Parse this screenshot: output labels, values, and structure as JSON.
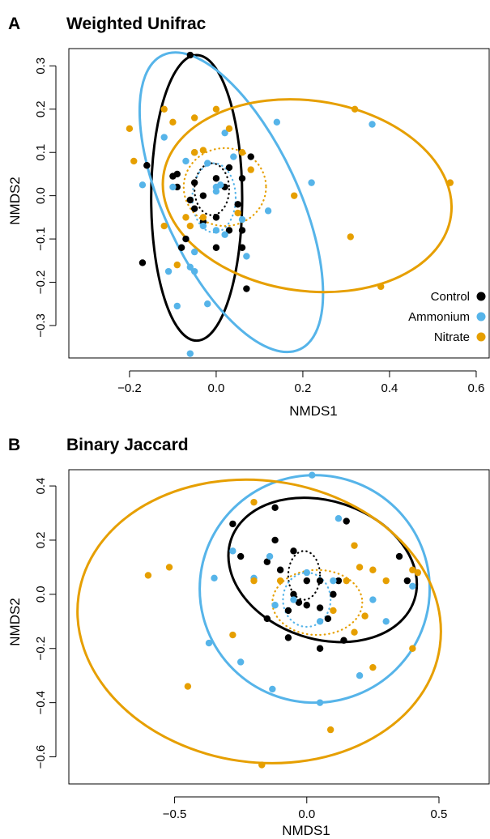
{
  "chart_data": [
    {
      "type": "scatter",
      "panel_label": "A",
      "title": "Weighted Unifrac",
      "xlabel": "NMDS1",
      "ylabel": "NMDS2",
      "xlim": [
        -0.34,
        0.63
      ],
      "ylim": [
        -0.375,
        0.34
      ],
      "xticks": [
        -0.2,
        0.0,
        0.2,
        0.4,
        0.6
      ],
      "xtick_labels": [
        "−0.2",
        "0.0",
        "0.2",
        "0.4",
        "0.6"
      ],
      "yticks": [
        -0.3,
        -0.2,
        -0.1,
        0.0,
        0.1,
        0.2,
        0.3
      ],
      "ytick_labels": [
        "−0.3",
        "−0.2",
        "−0.1",
        "0.0",
        "0.1",
        "0.2",
        "0.3"
      ],
      "grid": false,
      "legend": {
        "position": "bottom-right",
        "entries": [
          "Control",
          "Ammonium",
          "Nitrate"
        ]
      },
      "series": [
        {
          "name": "Control",
          "color": "#000000",
          "points": [
            [
              -0.06,
              0.325
            ],
            [
              -0.16,
              0.07
            ],
            [
              -0.09,
              0.05
            ],
            [
              -0.1,
              0.045
            ],
            [
              -0.09,
              0.02
            ],
            [
              -0.05,
              0.03
            ],
            [
              -0.06,
              -0.01
            ],
            [
              -0.03,
              0.0
            ],
            [
              0.0,
              0.04
            ],
            [
              0.03,
              0.065
            ],
            [
              0.08,
              0.09
            ],
            [
              0.06,
              0.04
            ],
            [
              0.02,
              0.02
            ],
            [
              0.05,
              -0.02
            ],
            [
              -0.05,
              -0.03
            ],
            [
              -0.03,
              -0.06
            ],
            [
              0.0,
              -0.05
            ],
            [
              0.03,
              -0.08
            ],
            [
              0.06,
              -0.08
            ],
            [
              -0.07,
              -0.1
            ],
            [
              0.06,
              -0.12
            ],
            [
              -0.08,
              -0.12
            ],
            [
              0.0,
              -0.12
            ],
            [
              -0.17,
              -0.155
            ],
            [
              0.07,
              -0.215
            ]
          ]
        },
        {
          "name": "Ammonium",
          "color": "#56B4E9",
          "points": [
            [
              0.14,
              0.17
            ],
            [
              0.36,
              0.165
            ],
            [
              -0.12,
              0.135
            ],
            [
              0.02,
              0.145
            ],
            [
              -0.05,
              0.1
            ],
            [
              -0.07,
              0.08
            ],
            [
              -0.02,
              0.075
            ],
            [
              0.04,
              0.09
            ],
            [
              -0.17,
              0.025
            ],
            [
              -0.1,
              0.02
            ],
            [
              0.0,
              0.02
            ],
            [
              0.01,
              0.025
            ],
            [
              0.22,
              0.03
            ],
            [
              0.0,
              0.01
            ],
            [
              0.12,
              -0.035
            ],
            [
              0.06,
              -0.055
            ],
            [
              -0.03,
              -0.07
            ],
            [
              0.0,
              -0.08
            ],
            [
              0.02,
              -0.09
            ],
            [
              0.07,
              -0.14
            ],
            [
              -0.05,
              -0.13
            ],
            [
              -0.11,
              -0.175
            ],
            [
              -0.06,
              -0.165
            ],
            [
              -0.05,
              -0.175
            ],
            [
              -0.09,
              -0.255
            ],
            [
              -0.02,
              -0.25
            ],
            [
              -0.06,
              -0.365
            ]
          ]
        },
        {
          "name": "Nitrate",
          "color": "#E69F00",
          "points": [
            [
              -0.12,
              0.2
            ],
            [
              -0.05,
              0.18
            ],
            [
              0.0,
              0.2
            ],
            [
              0.32,
              0.2
            ],
            [
              -0.2,
              0.155
            ],
            [
              -0.1,
              0.17
            ],
            [
              0.03,
              0.155
            ],
            [
              -0.05,
              0.1
            ],
            [
              -0.03,
              0.105
            ],
            [
              -0.19,
              0.08
            ],
            [
              0.06,
              0.1
            ],
            [
              0.08,
              0.06
            ],
            [
              0.18,
              0.0
            ],
            [
              0.54,
              0.03
            ],
            [
              -0.12,
              -0.07
            ],
            [
              -0.06,
              -0.07
            ],
            [
              -0.03,
              -0.05
            ],
            [
              0.05,
              -0.04
            ],
            [
              -0.07,
              -0.05
            ],
            [
              0.31,
              -0.095
            ],
            [
              -0.09,
              -0.16
            ],
            [
              0.38,
              -0.21
            ]
          ]
        }
      ],
      "ellipses": [
        {
          "series": "Control",
          "style": "solid",
          "cx": -0.045,
          "cy": -0.005,
          "rx": 0.105,
          "ry": 0.33,
          "angle_deg": 0
        },
        {
          "series": "Ammonium",
          "style": "solid",
          "cx": 0.035,
          "cy": -0.015,
          "rx": 0.155,
          "ry": 0.375,
          "angle_deg": 25
        },
        {
          "series": "Nitrate",
          "style": "solid",
          "cx": 0.21,
          "cy": 0.0,
          "rx": 0.335,
          "ry": 0.22,
          "angle_deg": -8
        },
        {
          "series": "Control",
          "style": "dotted",
          "cx": -0.01,
          "cy": 0.015,
          "rx": 0.04,
          "ry": 0.06,
          "angle_deg": 0
        },
        {
          "series": "Ammonium",
          "style": "dotted",
          "cx": -0.005,
          "cy": -0.005,
          "rx": 0.05,
          "ry": 0.08,
          "angle_deg": 0
        },
        {
          "series": "Nitrate",
          "style": "dotted",
          "cx": 0.02,
          "cy": 0.02,
          "rx": 0.095,
          "ry": 0.09,
          "angle_deg": 0
        }
      ]
    },
    {
      "type": "scatter",
      "panel_label": "B",
      "title": "Binary Jaccard",
      "xlabel": "NMDS1",
      "ylabel": "NMDS2",
      "xlim": [
        -0.9,
        0.69
      ],
      "ylim": [
        -0.7,
        0.46
      ],
      "xticks": [
        -0.5,
        0.0,
        0.5
      ],
      "xtick_labels": [
        "−0.5",
        "0.0",
        "0.5"
      ],
      "yticks": [
        -0.6,
        -0.4,
        -0.2,
        0.0,
        0.2,
        0.4
      ],
      "ytick_labels": [
        "−0.6",
        "−0.4",
        "−0.2",
        "0.0",
        "0.2",
        "0.4"
      ],
      "grid": false,
      "legend": null,
      "series": [
        {
          "name": "Control",
          "color": "#000000",
          "points": [
            [
              -0.28,
              0.26
            ],
            [
              -0.12,
              0.32
            ],
            [
              -0.12,
              0.2
            ],
            [
              -0.25,
              0.14
            ],
            [
              -0.05,
              0.16
            ],
            [
              0.15,
              0.27
            ],
            [
              -0.15,
              0.12
            ],
            [
              -0.1,
              0.09
            ],
            [
              0.0,
              0.05
            ],
            [
              0.05,
              0.05
            ],
            [
              0.1,
              0.0
            ],
            [
              0.12,
              0.05
            ],
            [
              0.35,
              0.14
            ],
            [
              -0.05,
              0.0
            ],
            [
              0.0,
              -0.04
            ],
            [
              -0.03,
              -0.03
            ],
            [
              0.05,
              -0.05
            ],
            [
              -0.07,
              -0.06
            ],
            [
              -0.15,
              -0.09
            ],
            [
              0.08,
              -0.09
            ],
            [
              0.38,
              0.05
            ],
            [
              -0.07,
              -0.16
            ],
            [
              0.05,
              -0.2
            ],
            [
              0.14,
              -0.17
            ]
          ]
        },
        {
          "name": "Ammonium",
          "color": "#56B4E9",
          "points": [
            [
              0.02,
              0.44
            ],
            [
              0.12,
              0.28
            ],
            [
              -0.28,
              0.16
            ],
            [
              -0.14,
              0.14
            ],
            [
              0.0,
              0.08
            ],
            [
              -0.35,
              0.06
            ],
            [
              -0.2,
              0.06
            ],
            [
              0.1,
              0.05
            ],
            [
              0.4,
              0.03
            ],
            [
              -0.05,
              -0.02
            ],
            [
              0.25,
              -0.02
            ],
            [
              -0.12,
              -0.04
            ],
            [
              0.05,
              -0.1
            ],
            [
              0.3,
              -0.1
            ],
            [
              -0.37,
              -0.18
            ],
            [
              -0.25,
              -0.25
            ],
            [
              -0.13,
              -0.35
            ],
            [
              0.2,
              -0.3
            ],
            [
              0.05,
              -0.4
            ]
          ]
        },
        {
          "name": "Nitrate",
          "color": "#E69F00",
          "points": [
            [
              -0.2,
              0.34
            ],
            [
              0.18,
              0.18
            ],
            [
              0.2,
              0.1
            ],
            [
              0.25,
              0.09
            ],
            [
              0.4,
              0.09
            ],
            [
              0.42,
              0.08
            ],
            [
              -0.1,
              0.05
            ],
            [
              0.15,
              0.05
            ],
            [
              0.3,
              0.05
            ],
            [
              -0.2,
              0.05
            ],
            [
              -0.6,
              0.07
            ],
            [
              -0.52,
              0.1
            ],
            [
              0.1,
              -0.06
            ],
            [
              0.22,
              -0.08
            ],
            [
              0.18,
              -0.14
            ],
            [
              0.4,
              -0.2
            ],
            [
              -0.28,
              -0.15
            ],
            [
              0.25,
              -0.27
            ],
            [
              -0.45,
              -0.34
            ],
            [
              0.09,
              -0.5
            ],
            [
              -0.17,
              -0.63
            ]
          ]
        }
      ],
      "ellipses": [
        {
          "series": "Control",
          "style": "solid",
          "cx": 0.06,
          "cy": 0.09,
          "rx": 0.365,
          "ry": 0.255,
          "angle_deg": -18
        },
        {
          "series": "Ammonium",
          "style": "solid",
          "cx": 0.03,
          "cy": 0.02,
          "rx": 0.435,
          "ry": 0.42,
          "angle_deg": 0
        },
        {
          "series": "Nitrate",
          "style": "solid",
          "cx": -0.18,
          "cy": -0.1,
          "rx": 0.69,
          "ry": 0.52,
          "angle_deg": -8
        },
        {
          "series": "Control",
          "style": "dotted",
          "cx": -0.01,
          "cy": 0.07,
          "rx": 0.06,
          "ry": 0.09,
          "angle_deg": 0
        },
        {
          "series": "Ammonium",
          "style": "dotted",
          "cx": 0.0,
          "cy": -0.02,
          "rx": 0.09,
          "ry": 0.1,
          "angle_deg": 0
        },
        {
          "series": "Nitrate",
          "style": "dotted",
          "cx": 0.04,
          "cy": -0.03,
          "rx": 0.17,
          "ry": 0.12,
          "angle_deg": 0
        }
      ]
    }
  ]
}
